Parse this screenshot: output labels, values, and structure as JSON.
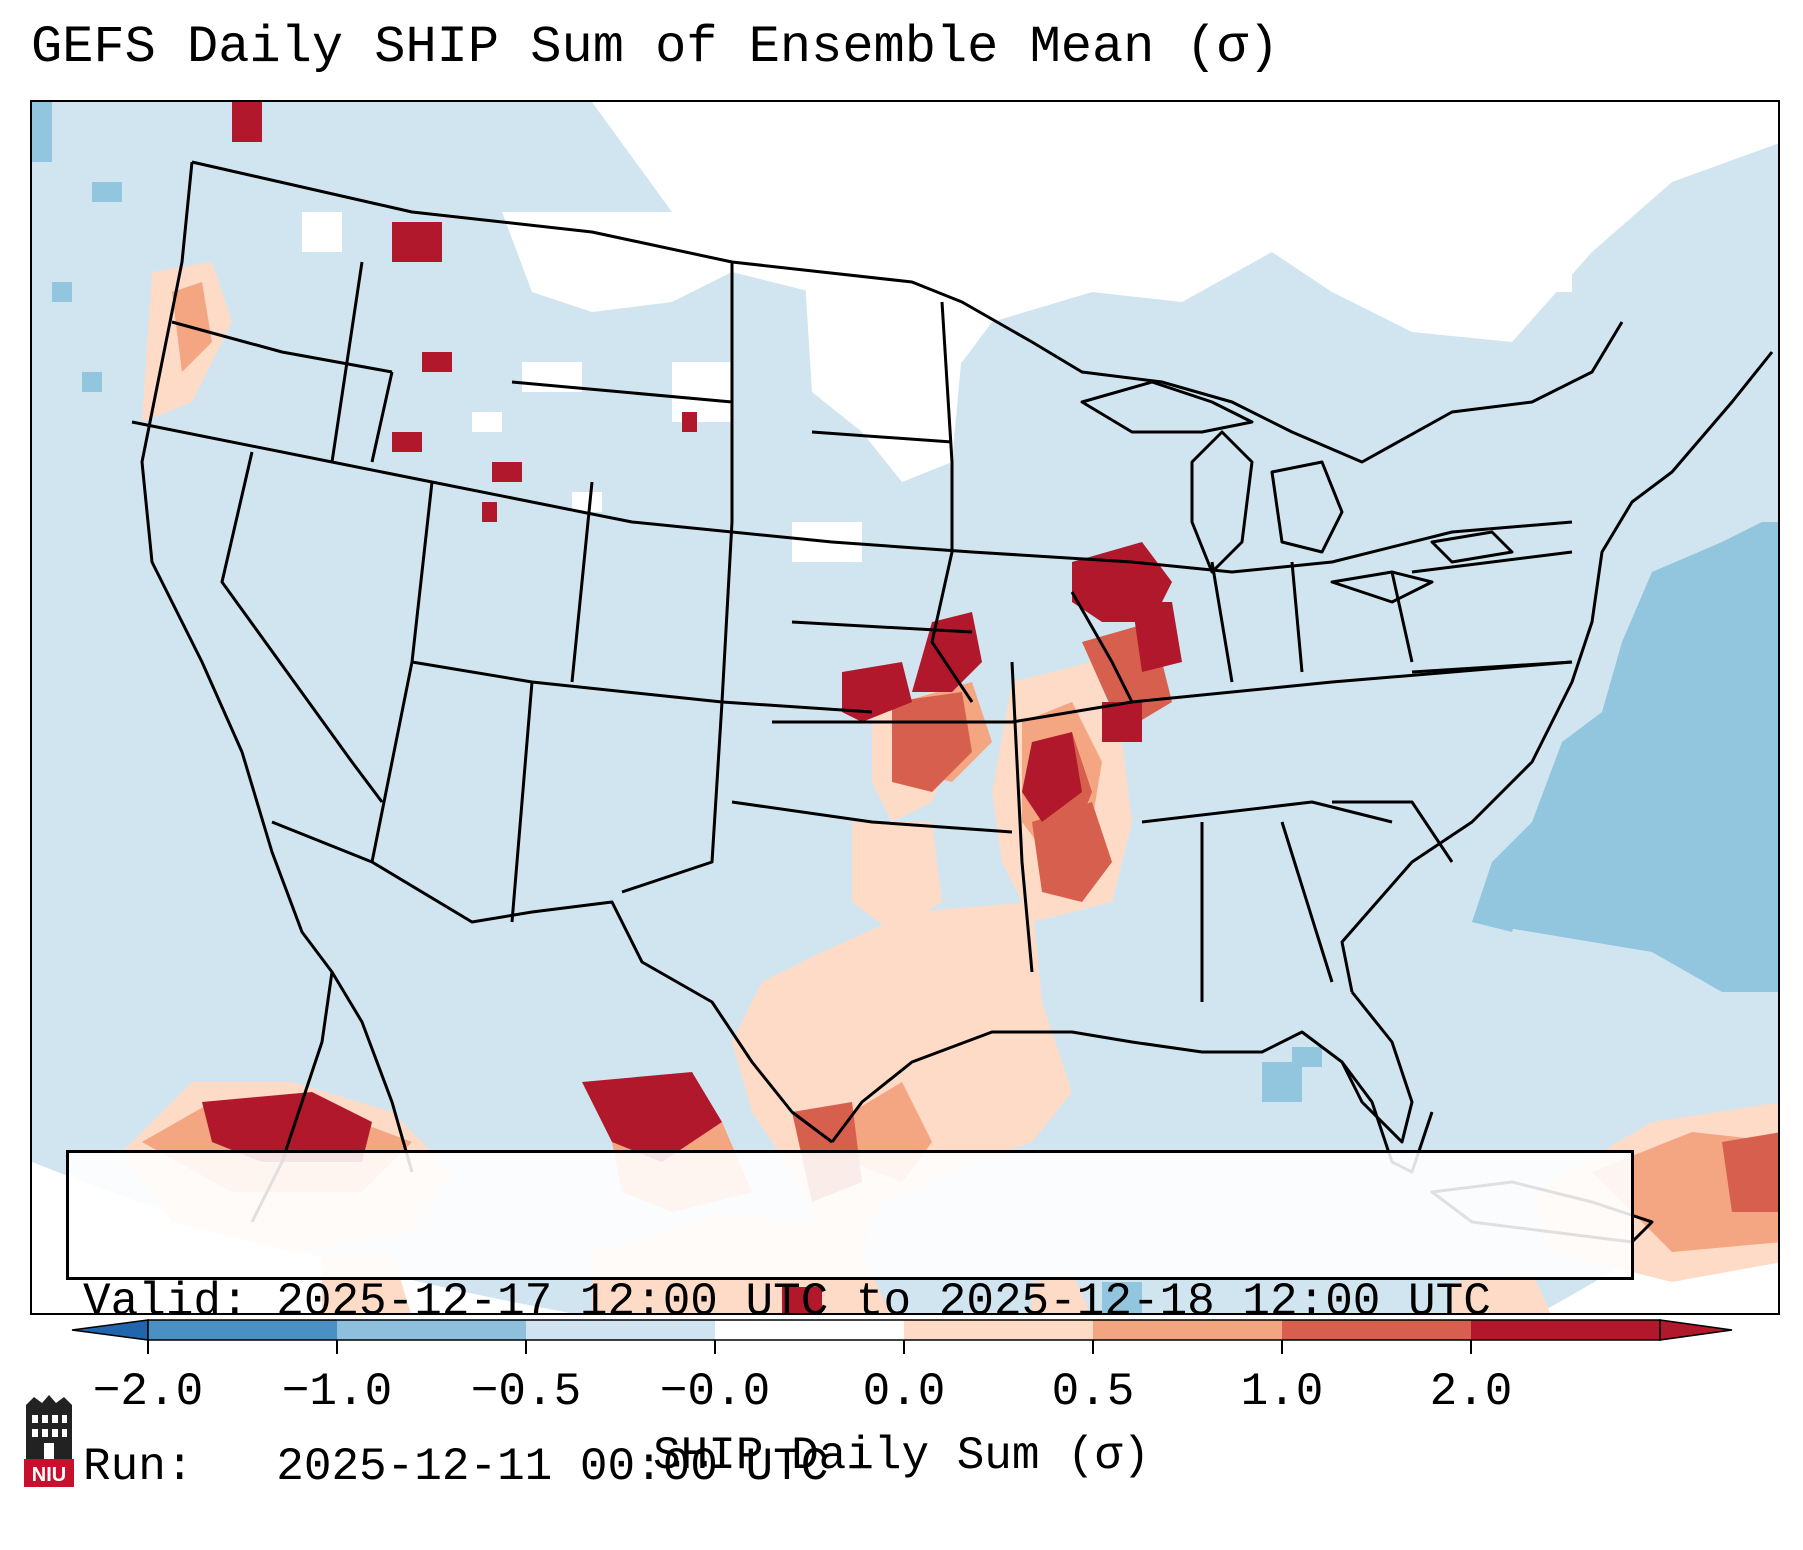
{
  "title": "GEFS Daily SHIP Sum of Ensemble Mean (σ)",
  "info": {
    "valid_line": "Valid: 2025-12-17 12:00 UTC to 2025-12-18 12:00 UTC",
    "run_line": "Run:   2025-12-11 00:00 UTC"
  },
  "colorbar": {
    "label": "SHIP Daily Sum (σ)",
    "ticks": [
      "−2.0",
      "−1.0",
      "−0.5",
      "−0.0",
      "0.0",
      "0.5",
      "1.0",
      "2.0"
    ],
    "bin_colors": [
      "#4a90c4",
      "#8ec0dd",
      "#cfe3f0",
      "#ffffff",
      "#fddbc7",
      "#f3a481",
      "#d6604d",
      "#b2182b"
    ],
    "under_color": "#2166ac",
    "over_color": "#b2182b",
    "extend": "both"
  },
  "legend_position": "bottom-left",
  "colors": {
    "background_field": "#d1e5f0",
    "neutral": "#ffffff",
    "moderate_negative": "#92c5de",
    "light_positive": "#fddbc7",
    "moderate_positive": "#f4a582",
    "strong_positive": "#d6604d",
    "very_strong_positive": "#b2182b",
    "borders": "#000000"
  },
  "logo": {
    "name": "niu-logo",
    "text": "NIU"
  }
}
